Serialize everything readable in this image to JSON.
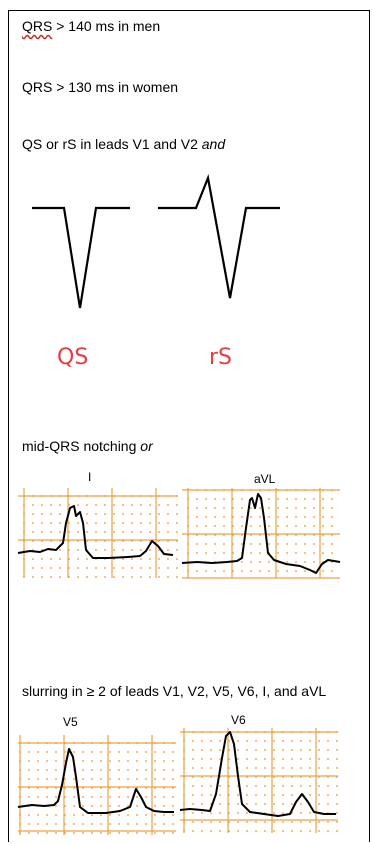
{
  "criteria": {
    "qrs_men_term": "QRS",
    "qrs_men_rest": " > 140 ms in men",
    "qrs_women": "QRS > 130 ms in women",
    "qs_rs_text": "QS or rS in leads V1 and V2 ",
    "qs_rs_and": "and",
    "notching_text": "mid-QRS notching ",
    "notching_or": "or",
    "slurring_text": "slurring in ≥ 2 of leads V1, V2, V5, V6, I, and aVL"
  },
  "waveforms": {
    "qs_label": "QS",
    "rs_label": "rS",
    "label_color": "#ee3b3b"
  },
  "ecg": {
    "notching_leads": [
      "I",
      "aVL"
    ],
    "slurring_leads": [
      "V5",
      "V6"
    ],
    "grid_color": "#f0a040",
    "trace_color": "#000000"
  }
}
